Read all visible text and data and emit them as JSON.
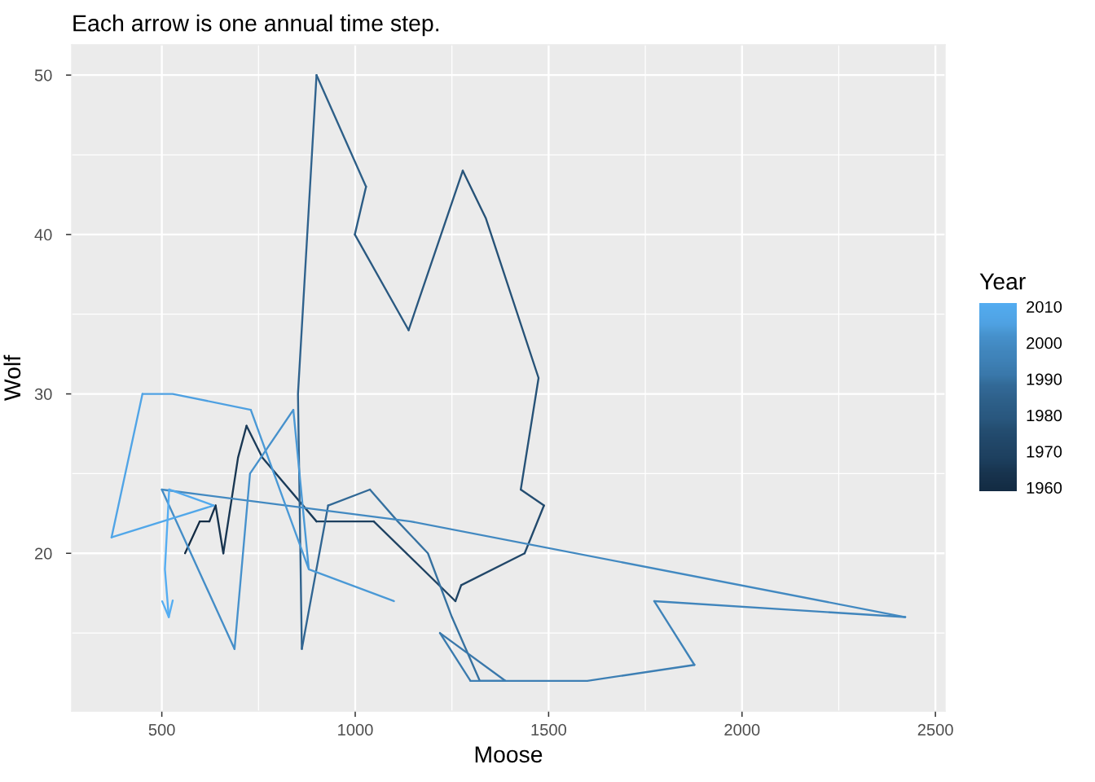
{
  "chart_data": {
    "type": "line",
    "title": "Each arrow is one annual time step.",
    "xlabel": "Moose",
    "ylabel": "Wolf",
    "clabel": "Year",
    "series": [
      {
        "x": [
          560,
          598
        ],
        "values": [
          20,
          22
        ],
        "color": "#132b43"
      },
      {
        "x": [
          598,
          623
        ],
        "values": [
          22,
          22
        ],
        "color": "#142e46"
      },
      {
        "x": [
          623,
          639
        ],
        "values": [
          22,
          23
        ],
        "color": "#16304a"
      },
      {
        "x": [
          639,
          659
        ],
        "values": [
          23,
          20
        ],
        "color": "#17334d"
      },
      {
        "x": [
          659,
          697,
          719
        ],
        "values": [
          20,
          26,
          28
        ],
        "color": "#193753"
      },
      {
        "x": [
          719,
          760,
          900
        ],
        "values": [
          28,
          26,
          22
        ],
        "color": "#1b3c5a"
      },
      {
        "x": [
          900,
          1048
        ],
        "values": [
          22,
          22
        ],
        "color": "#1d405f"
      },
      {
        "x": [
          1048,
          1259
        ],
        "values": [
          22,
          17
        ],
        "color": "#1f4262"
      },
      {
        "x": [
          1259,
          1274
        ],
        "values": [
          17,
          18
        ],
        "color": "#204566"
      },
      {
        "x": [
          1274,
          1438
        ],
        "values": [
          18,
          20
        ],
        "color": "#214769"
      },
      {
        "x": [
          1438,
          1488
        ],
        "values": [
          20,
          23
        ],
        "color": "#224a6d"
      },
      {
        "x": [
          1488,
          1428
        ],
        "values": [
          23,
          24
        ],
        "color": "#244d70"
      },
      {
        "x": [
          1428,
          1474,
          1338,
          1278
        ],
        "values": [
          24,
          31,
          41,
          44
        ],
        "color": "#265277"
      },
      {
        "x": [
          1278,
          1138
        ],
        "values": [
          44,
          34
        ],
        "color": "#29577e"
      },
      {
        "x": [
          1138,
          999
        ],
        "values": [
          34,
          40
        ],
        "color": "#2a5981"
      },
      {
        "x": [
          999,
          1028
        ],
        "values": [
          40,
          43
        ],
        "color": "#2b5c85"
      },
      {
        "x": [
          1028,
          900
        ],
        "values": [
          43,
          50
        ],
        "color": "#2d5f88"
      },
      {
        "x": [
          900,
          852,
          862
        ],
        "values": [
          50,
          30,
          14
        ],
        "color": "#2f628d"
      },
      {
        "x": [
          862,
          930
        ],
        "values": [
          14,
          23
        ],
        "color": "#316693"
      },
      {
        "x": [
          930,
          1038
        ],
        "values": [
          23,
          24
        ],
        "color": "#326996"
      },
      {
        "x": [
          1038,
          1110,
          1188,
          1250,
          1322,
          1388
        ],
        "values": [
          24,
          22,
          20,
          16,
          12,
          12
        ],
        "color": "#3671a0"
      },
      {
        "x": [
          1388,
          1219
        ],
        "values": [
          12,
          15
        ],
        "color": "#3a78ab"
      },
      {
        "x": [
          1219,
          1298
        ],
        "values": [
          15,
          12
        ],
        "color": "#3b7bae"
      },
      {
        "x": [
          1298,
          1600,
          1877
        ],
        "values": [
          12,
          12,
          13
        ],
        "color": "#3d7fb4"
      },
      {
        "x": [
          1877,
          1773
        ],
        "values": [
          13,
          17
        ],
        "color": "#3f83b9"
      },
      {
        "x": [
          1773,
          2422
        ],
        "values": [
          17,
          16
        ],
        "color": "#4085bc"
      },
      {
        "x": [
          2422,
          1143,
          500
        ],
        "values": [
          16,
          22,
          24
        ],
        "color": "#4289c1"
      },
      {
        "x": [
          500,
          688
        ],
        "values": [
          24,
          14
        ],
        "color": "#448dc7"
      },
      {
        "x": [
          688,
          728,
          840
        ],
        "values": [
          14,
          25,
          29
        ],
        "color": "#4691cc"
      },
      {
        "x": [
          840,
          880,
          1100,
          880,
          730
        ],
        "values": [
          29,
          19,
          17,
          19,
          29
        ],
        "color": "#4a99d6"
      },
      {
        "x": [
          730,
          528,
          450
        ],
        "values": [
          29,
          30,
          30
        ],
        "color": "#4ea0e1"
      },
      {
        "x": [
          450,
          370
        ],
        "values": [
          30,
          21
        ],
        "color": "#50a4e6"
      },
      {
        "x": [
          370,
          634
        ],
        "values": [
          21,
          23
        ],
        "color": "#51a7e9"
      },
      {
        "x": [
          634,
          519
        ],
        "values": [
          23,
          24
        ],
        "color": "#52a9ed"
      },
      {
        "x": [
          519,
          508,
          518
        ],
        "values": [
          24,
          19,
          16
        ],
        "color": "#54adf2"
      }
    ],
    "clim": [
      1959,
      2011
    ],
    "cticks": [
      1960,
      1970,
      1980,
      1990,
      2000,
      2010
    ],
    "xlim": [
      267,
      2525
    ],
    "ylim": [
      10.1,
      51.9
    ],
    "xticks": [
      500,
      1000,
      1500,
      2000,
      2500
    ],
    "yticks": [
      20,
      30,
      40,
      50
    ],
    "grid": true
  }
}
